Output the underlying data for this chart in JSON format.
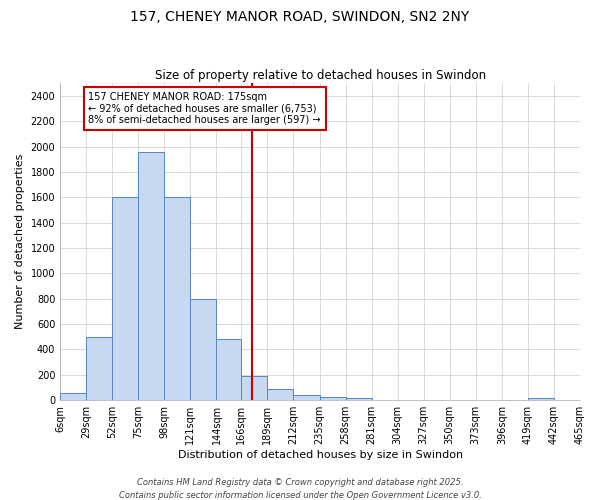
{
  "title": "157, CHENEY MANOR ROAD, SWINDON, SN2 2NY",
  "subtitle": "Size of property relative to detached houses in Swindon",
  "xlabel": "Distribution of detached houses by size in Swindon",
  "ylabel": "Number of detached properties",
  "bar_color": "#c8d8f0",
  "bar_edge_color": "#5585c5",
  "background_color": "#ffffff",
  "fig_background_color": "#ffffff",
  "grid_color": "#cccccc",
  "vline_value": 175,
  "vline_color": "#cc0000",
  "annotation_text": "157 CHENEY MANOR ROAD: 175sqm\n← 92% of detached houses are smaller (6,753)\n8% of semi-detached houses are larger (597) →",
  "annotation_box_color": "#ffffff",
  "annotation_box_edge": "#cc0000",
  "bin_edges": [
    6,
    29,
    52,
    75,
    98,
    121,
    144,
    166,
    189,
    212,
    235,
    258,
    281,
    304,
    327,
    350,
    373,
    396,
    419,
    442,
    465
  ],
  "bar_heights": [
    60,
    500,
    1600,
    1960,
    1600,
    800,
    480,
    190,
    85,
    45,
    25,
    15,
    5,
    2,
    2,
    2,
    2,
    0,
    15,
    0
  ],
  "xtick_labels": [
    "6sqm",
    "29sqm",
    "52sqm",
    "75sqm",
    "98sqm",
    "121sqm",
    "144sqm",
    "166sqm",
    "189sqm",
    "212sqm",
    "235sqm",
    "258sqm",
    "281sqm",
    "304sqm",
    "327sqm",
    "350sqm",
    "373sqm",
    "396sqm",
    "419sqm",
    "442sqm",
    "465sqm"
  ],
  "ylim": [
    0,
    2500
  ],
  "yticks": [
    0,
    200,
    400,
    600,
    800,
    1000,
    1200,
    1400,
    1600,
    1800,
    2000,
    2200,
    2400
  ],
  "footer_text": "Contains HM Land Registry data © Crown copyright and database right 2025.\nContains public sector information licensed under the Open Government Licence v3.0.",
  "title_fontsize": 10,
  "subtitle_fontsize": 8.5,
  "axis_label_fontsize": 8,
  "tick_fontsize": 7,
  "annotation_fontsize": 7,
  "footer_fontsize": 6
}
